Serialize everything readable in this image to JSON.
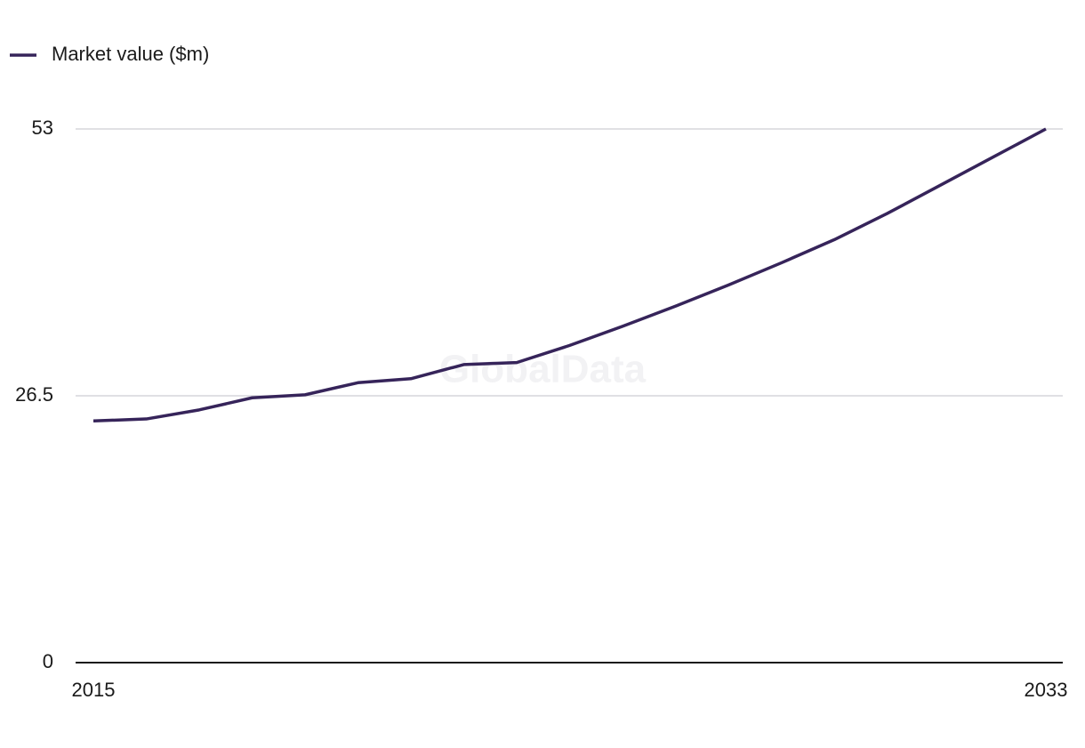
{
  "chart_data": {
    "type": "line",
    "watermark": "GlobalData",
    "x": [
      2015,
      2016,
      2017,
      2018,
      2019,
      2020,
      2021,
      2022,
      2023,
      2024,
      2025,
      2026,
      2027,
      2028,
      2029,
      2030,
      2031,
      2032,
      2033
    ],
    "series": [
      {
        "name": "Market value ($m)",
        "color": "#36245a",
        "values": [
          24.0,
          24.2,
          25.1,
          26.3,
          26.6,
          27.8,
          28.2,
          29.6,
          29.8,
          31.5,
          33.4,
          35.4,
          37.5,
          39.7,
          42.0,
          44.6,
          47.4,
          50.2,
          53.0
        ]
      }
    ],
    "xlim": [
      2015,
      2033
    ],
    "xticks": [
      2015,
      2033
    ],
    "ylim": [
      0,
      53
    ],
    "yticks": [
      0,
      26.5,
      53
    ],
    "grid": true
  }
}
